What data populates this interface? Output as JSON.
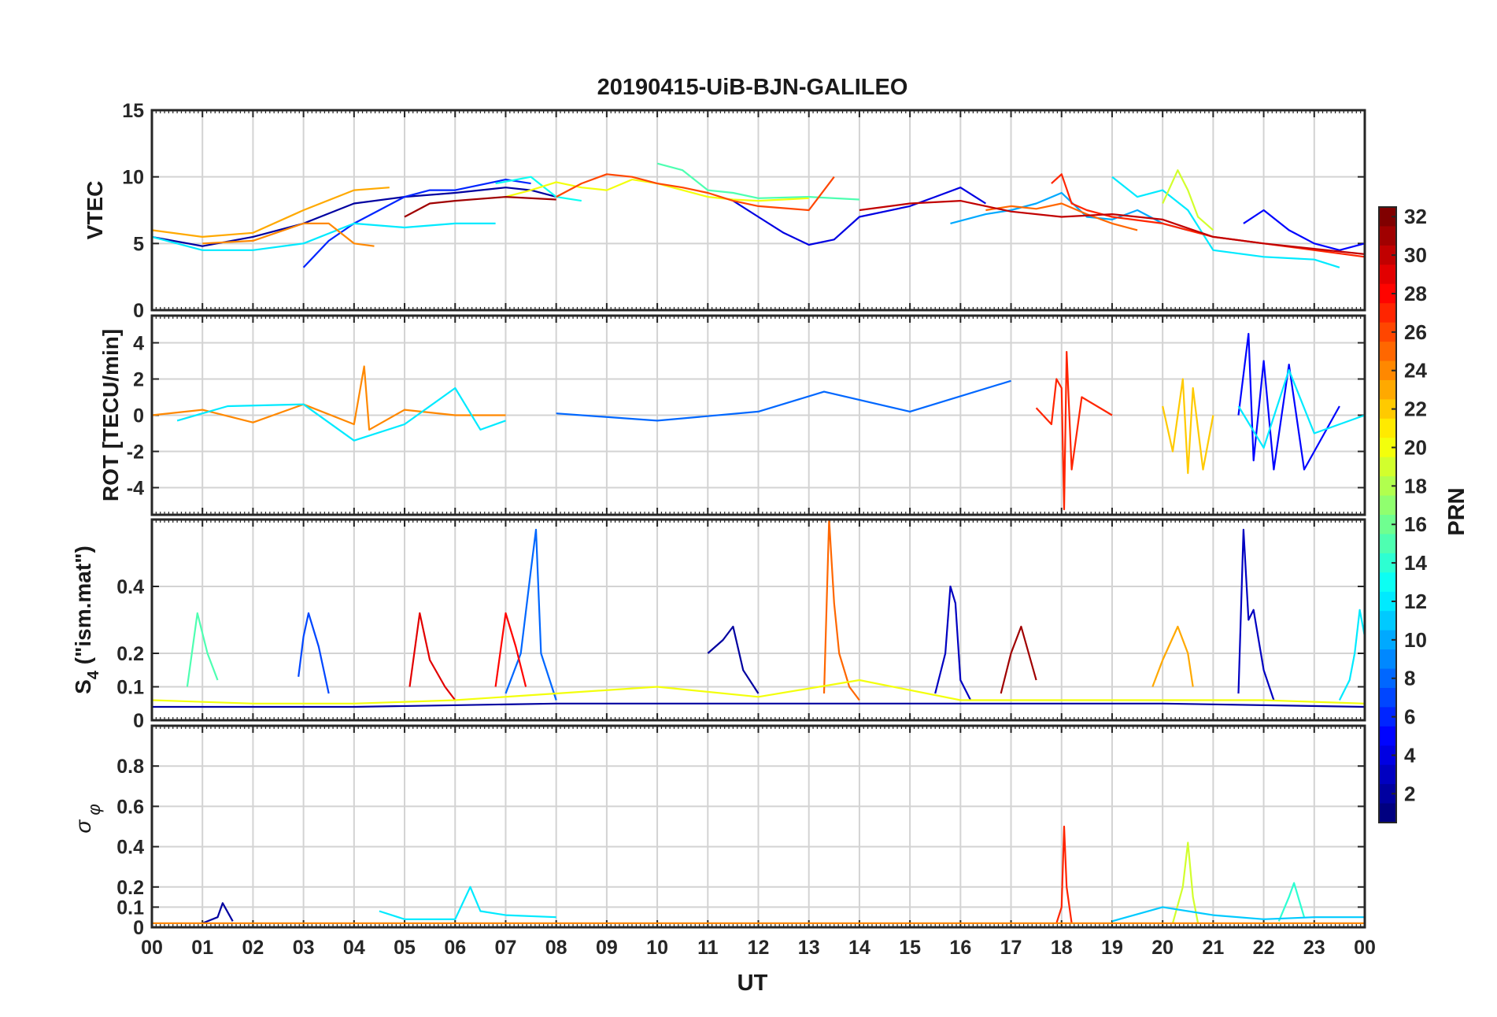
{
  "figure": {
    "title": "20190415-UiB-BJN-GALILEO",
    "xlabel": "UT"
  },
  "colorbar": {
    "label": "PRN",
    "ticks": [
      2,
      4,
      6,
      8,
      10,
      12,
      14,
      16,
      18,
      20,
      22,
      24,
      26,
      28,
      30,
      32
    ],
    "range": [
      1,
      32
    ],
    "colormap": "jet"
  },
  "chart_data": [
    {
      "type": "line",
      "panel": "VTEC",
      "ylabel": "VTEC",
      "ylim": [
        0,
        15
      ],
      "yticks": [
        "0",
        "5",
        "10",
        "15"
      ],
      "xlim": [
        0,
        24
      ],
      "xticks": [
        "00",
        "01",
        "02",
        "03",
        "04",
        "05",
        "06",
        "07",
        "08",
        "09",
        "10",
        "11",
        "12",
        "13",
        "14",
        "15",
        "16",
        "17",
        "18",
        "19",
        "20",
        "21",
        "22",
        "23",
        "00"
      ],
      "grid": true,
      "series": [
        {
          "prn": 2,
          "x": [
            0,
            1,
            2,
            3,
            4,
            5,
            6,
            7,
            7.5,
            8
          ],
          "y": [
            5.5,
            4.8,
            5.5,
            6.5,
            8,
            8.5,
            8.8,
            9.2,
            9,
            8.5
          ]
        },
        {
          "prn": 4,
          "x": [
            11.5,
            12,
            12.5,
            13,
            13.5,
            14,
            15,
            15.5,
            16,
            16.5
          ],
          "y": [
            8.2,
            7,
            5.8,
            4.9,
            5.3,
            7,
            7.8,
            8.5,
            9.2,
            8
          ]
        },
        {
          "prn": 5,
          "x": [
            21.6,
            22,
            22.5,
            23,
            23.5,
            24
          ],
          "y": [
            6.5,
            7.5,
            6,
            5,
            4.5,
            5
          ]
        },
        {
          "prn": 6,
          "x": [
            3,
            3.5,
            4,
            4.5,
            5,
            5.5,
            6,
            7,
            7.5
          ],
          "y": [
            3.2,
            5.2,
            6.5,
            7.5,
            8.5,
            9,
            9,
            9.8,
            9.5
          ]
        },
        {
          "prn": 10,
          "x": [
            15.8,
            16.5,
            17,
            17.5,
            18,
            18.5,
            19,
            19.5,
            20,
            20.5
          ],
          "y": [
            6.5,
            7.2,
            7.5,
            8,
            8.8,
            7,
            6.8,
            7.5,
            6.5,
            6
          ]
        },
        {
          "prn": 12,
          "x": [
            0,
            1,
            2,
            3,
            4,
            5,
            6,
            6.8
          ],
          "y": [
            5.5,
            4.5,
            4.5,
            5,
            6.5,
            6.2,
            6.5,
            6.5
          ]
        },
        {
          "prn": 13,
          "x": [
            6.8,
            7.5,
            8,
            8.5
          ],
          "y": [
            9.5,
            10,
            8.5,
            8.2
          ]
        },
        {
          "prn": 12,
          "x": [
            19,
            19.5,
            20,
            20.5,
            21,
            22,
            23,
            23.5
          ],
          "y": [
            10,
            8.5,
            9,
            7.5,
            4.5,
            4,
            3.8,
            3.2
          ]
        },
        {
          "prn": 15,
          "x": [
            10,
            10.5,
            11,
            11.5,
            12,
            13,
            14
          ],
          "y": [
            11,
            10.5,
            9,
            8.8,
            8.4,
            8.5,
            8.3
          ]
        },
        {
          "prn": 20,
          "x": [
            7,
            7.5,
            8,
            8.5,
            9,
            9.5,
            10,
            10.5,
            11,
            11.5,
            12,
            12.5,
            13
          ],
          "y": [
            8.5,
            9,
            9.6,
            9.2,
            9,
            9.8,
            9.5,
            9,
            8.5,
            8.3,
            8.2,
            8.3,
            8.4
          ]
        },
        {
          "prn": 19,
          "x": [
            20,
            20.3,
            20.5,
            20.7,
            21
          ],
          "y": [
            8,
            10.5,
            9,
            7,
            6
          ]
        },
        {
          "prn": 23,
          "x": [
            0,
            1,
            2,
            3,
            4,
            4.7
          ],
          "y": [
            6,
            5.5,
            5.8,
            7.5,
            9,
            9.2
          ]
        },
        {
          "prn": 24,
          "x": [
            1,
            2,
            3,
            3.5,
            4,
            4.4
          ],
          "y": [
            5,
            5.2,
            6.5,
            6.5,
            5,
            4.8
          ]
        },
        {
          "prn": 25,
          "x": [
            16.5,
            17,
            17.5,
            18,
            18.5,
            19,
            19.5
          ],
          "y": [
            7.5,
            7.8,
            7.6,
            8,
            7.2,
            6.5,
            6
          ]
        },
        {
          "prn": 26,
          "x": [
            8,
            8.5,
            9,
            9.5,
            10,
            10.5,
            11,
            11.5,
            12,
            13,
            13.5
          ],
          "y": [
            8.5,
            9.5,
            10.2,
            10,
            9.5,
            9.2,
            8.8,
            8.2,
            7.8,
            7.5,
            10
          ]
        },
        {
          "prn": 27,
          "x": [
            17.8,
            18,
            18.2,
            18.5,
            19,
            20,
            21,
            22,
            23,
            24
          ],
          "y": [
            9.5,
            10.2,
            8,
            7.5,
            7,
            6.5,
            5.5,
            5,
            4.5,
            4
          ]
        },
        {
          "prn": 31,
          "x": [
            5,
            5.5,
            6,
            7,
            8
          ],
          "y": [
            7,
            8,
            8.2,
            8.5,
            8.3
          ]
        },
        {
          "prn": 30,
          "x": [
            14,
            15,
            16,
            17,
            18,
            19,
            20,
            21,
            22,
            23,
            24
          ],
          "y": [
            7.5,
            8,
            8.2,
            7.4,
            7,
            7.2,
            6.8,
            5.5,
            5,
            4.6,
            4.2
          ]
        }
      ]
    },
    {
      "type": "line",
      "panel": "ROT",
      "ylabel": "ROT [TECU/min]",
      "ylim": [
        -5.5,
        5.5
      ],
      "yticks": [
        "-4",
        "-2",
        "0",
        "2",
        "4"
      ],
      "xlim": [
        0,
        24
      ],
      "grid": true,
      "series": [
        {
          "prn": 24,
          "x": [
            0,
            1,
            2,
            3,
            4,
            4.2,
            4.3,
            5,
            6,
            7
          ],
          "y": [
            0,
            0.3,
            -0.4,
            0.6,
            -0.5,
            2.7,
            -0.8,
            0.3,
            0,
            0
          ]
        },
        {
          "prn": 12,
          "x": [
            0.5,
            1.5,
            3,
            4,
            5,
            6,
            6.5,
            7
          ],
          "y": [
            -0.3,
            0.5,
            0.6,
            -1.4,
            -0.5,
            1.5,
            -0.8,
            -0.3
          ]
        },
        {
          "prn": 27,
          "x": [
            17.5,
            17.8,
            17.9,
            18,
            18.05,
            18.1,
            18.2,
            18.4,
            19
          ],
          "y": [
            0.4,
            -0.5,
            2,
            1.5,
            -5.2,
            3.5,
            -3,
            1,
            0
          ]
        },
        {
          "prn": 22,
          "x": [
            20,
            20.2,
            20.4,
            20.5,
            20.6,
            20.8,
            21
          ],
          "y": [
            0.5,
            -2,
            2,
            -3.2,
            1.5,
            -3,
            0
          ]
        },
        {
          "prn": 5,
          "x": [
            21.5,
            21.7,
            21.8,
            22,
            22.2,
            22.5,
            22.8,
            23.5
          ],
          "y": [
            0,
            4.5,
            -2.5,
            3,
            -3,
            2.8,
            -3,
            0.5
          ]
        },
        {
          "prn": 12,
          "x": [
            21.5,
            22,
            22.5,
            23,
            24
          ],
          "y": [
            0.5,
            -1.8,
            2.5,
            -1,
            0
          ]
        },
        {
          "prn": 8,
          "x": [
            8,
            10,
            12,
            13.3,
            15,
            17
          ],
          "y": [
            0.1,
            -0.3,
            0.2,
            1.3,
            0.2,
            1.9
          ]
        }
      ]
    },
    {
      "type": "line",
      "panel": "S4",
      "ylabel": "S4 (\"ism.mat\")",
      "ylim": [
        0,
        0.6
      ],
      "yticks": [
        "0",
        "0.1",
        "0.2",
        "0.4"
      ],
      "xlim": [
        0,
        24
      ],
      "grid": true,
      "series": [
        {
          "prn": 7,
          "x": [
            2.9,
            3,
            3.1,
            3.3,
            3.5
          ],
          "y": [
            0.13,
            0.25,
            0.32,
            0.22,
            0.08
          ]
        },
        {
          "prn": 8,
          "x": [
            7,
            7.3,
            7.5,
            7.6,
            7.7,
            8
          ],
          "y": [
            0.08,
            0.2,
            0.45,
            0.57,
            0.2,
            0.06
          ]
        },
        {
          "prn": 25,
          "x": [
            13.3,
            13.4,
            13.5,
            13.6,
            13.8,
            14
          ],
          "y": [
            0.08,
            0.6,
            0.35,
            0.2,
            0.1,
            0.06
          ]
        },
        {
          "prn": 3,
          "x": [
            15.5,
            15.7,
            15.8,
            15.9,
            16,
            16.2
          ],
          "y": [
            0.08,
            0.2,
            0.4,
            0.35,
            0.12,
            0.06
          ]
        },
        {
          "prn": 3,
          "x": [
            21.5,
            21.6,
            21.7,
            21.8,
            22,
            22.2
          ],
          "y": [
            0.08,
            0.57,
            0.3,
            0.33,
            0.15,
            0.06
          ]
        },
        {
          "prn": 29,
          "x": [
            5.1,
            5.3,
            5.5,
            5.8,
            6
          ],
          "y": [
            0.1,
            0.32,
            0.18,
            0.1,
            0.06
          ]
        },
        {
          "prn": 28,
          "x": [
            6.8,
            7,
            7.2,
            7.4
          ],
          "y": [
            0.1,
            0.32,
            0.22,
            0.1
          ]
        },
        {
          "prn": 2,
          "x": [
            11,
            11.3,
            11.5,
            11.7,
            12
          ],
          "y": [
            0.2,
            0.24,
            0.28,
            0.15,
            0.08
          ]
        },
        {
          "prn": 23,
          "x": [
            19.8,
            20,
            20.3,
            20.5,
            20.6
          ],
          "y": [
            0.1,
            0.18,
            0.28,
            0.2,
            0.1
          ]
        },
        {
          "prn": 12,
          "x": [
            23.5,
            23.7,
            23.8,
            23.9,
            24
          ],
          "y": [
            0.06,
            0.12,
            0.2,
            0.33,
            0.25
          ]
        },
        {
          "prn": 15,
          "x": [
            0.7,
            0.9,
            1.1,
            1.3
          ],
          "y": [
            0.1,
            0.32,
            0.2,
            0.12
          ]
        },
        {
          "prn": 31,
          "x": [
            16.8,
            17,
            17.2,
            17.5
          ],
          "y": [
            0.08,
            0.2,
            0.28,
            0.12
          ]
        },
        {
          "prn": 20,
          "x": [
            0,
            2,
            4,
            6,
            8,
            10,
            12,
            14,
            16,
            18,
            20,
            22,
            24
          ],
          "y": [
            0.06,
            0.05,
            0.05,
            0.06,
            0.08,
            0.1,
            0.07,
            0.12,
            0.06,
            0.06,
            0.06,
            0.06,
            0.05
          ]
        },
        {
          "prn": 2,
          "x": [
            0,
            4,
            8,
            12,
            16,
            20,
            24
          ],
          "y": [
            0.04,
            0.04,
            0.05,
            0.05,
            0.05,
            0.05,
            0.04
          ]
        }
      ]
    },
    {
      "type": "line",
      "panel": "sigma_phi",
      "ylabel": "σ_φ",
      "ylim": [
        0,
        1
      ],
      "yticks": [
        "0",
        "0.1",
        "0.2",
        "0.4",
        "0.6",
        "0.8"
      ],
      "xlim": [
        0,
        24
      ],
      "grid": true,
      "series": [
        {
          "prn": 27,
          "x": [
            17.9,
            18,
            18.05,
            18.1,
            18.2
          ],
          "y": [
            0.02,
            0.1,
            0.5,
            0.2,
            0.02
          ]
        },
        {
          "prn": 19,
          "x": [
            20.2,
            20.4,
            20.5,
            20.6,
            20.7
          ],
          "y": [
            0.02,
            0.2,
            0.42,
            0.15,
            0.02
          ]
        },
        {
          "prn": 12,
          "x": [
            4.5,
            5,
            6,
            6.3,
            6.5,
            7,
            8
          ],
          "y": [
            0.08,
            0.04,
            0.04,
            0.2,
            0.08,
            0.06,
            0.05
          ]
        },
        {
          "prn": 14,
          "x": [
            22.3,
            22.5,
            22.6,
            22.8
          ],
          "y": [
            0.03,
            0.15,
            0.22,
            0.05
          ]
        },
        {
          "prn": 2,
          "x": [
            1,
            1.3,
            1.4,
            1.6
          ],
          "y": [
            0.02,
            0.05,
            0.12,
            0.03
          ]
        },
        {
          "prn": 11,
          "x": [
            19,
            20,
            21,
            22,
            23,
            24
          ],
          "y": [
            0.03,
            0.1,
            0.06,
            0.04,
            0.05,
            0.05
          ]
        },
        {
          "prn": 24,
          "x": [
            0,
            4,
            8,
            12,
            16,
            20,
            24
          ],
          "y": [
            0.02,
            0.02,
            0.02,
            0.02,
            0.02,
            0.02,
            0.02
          ]
        }
      ]
    }
  ]
}
